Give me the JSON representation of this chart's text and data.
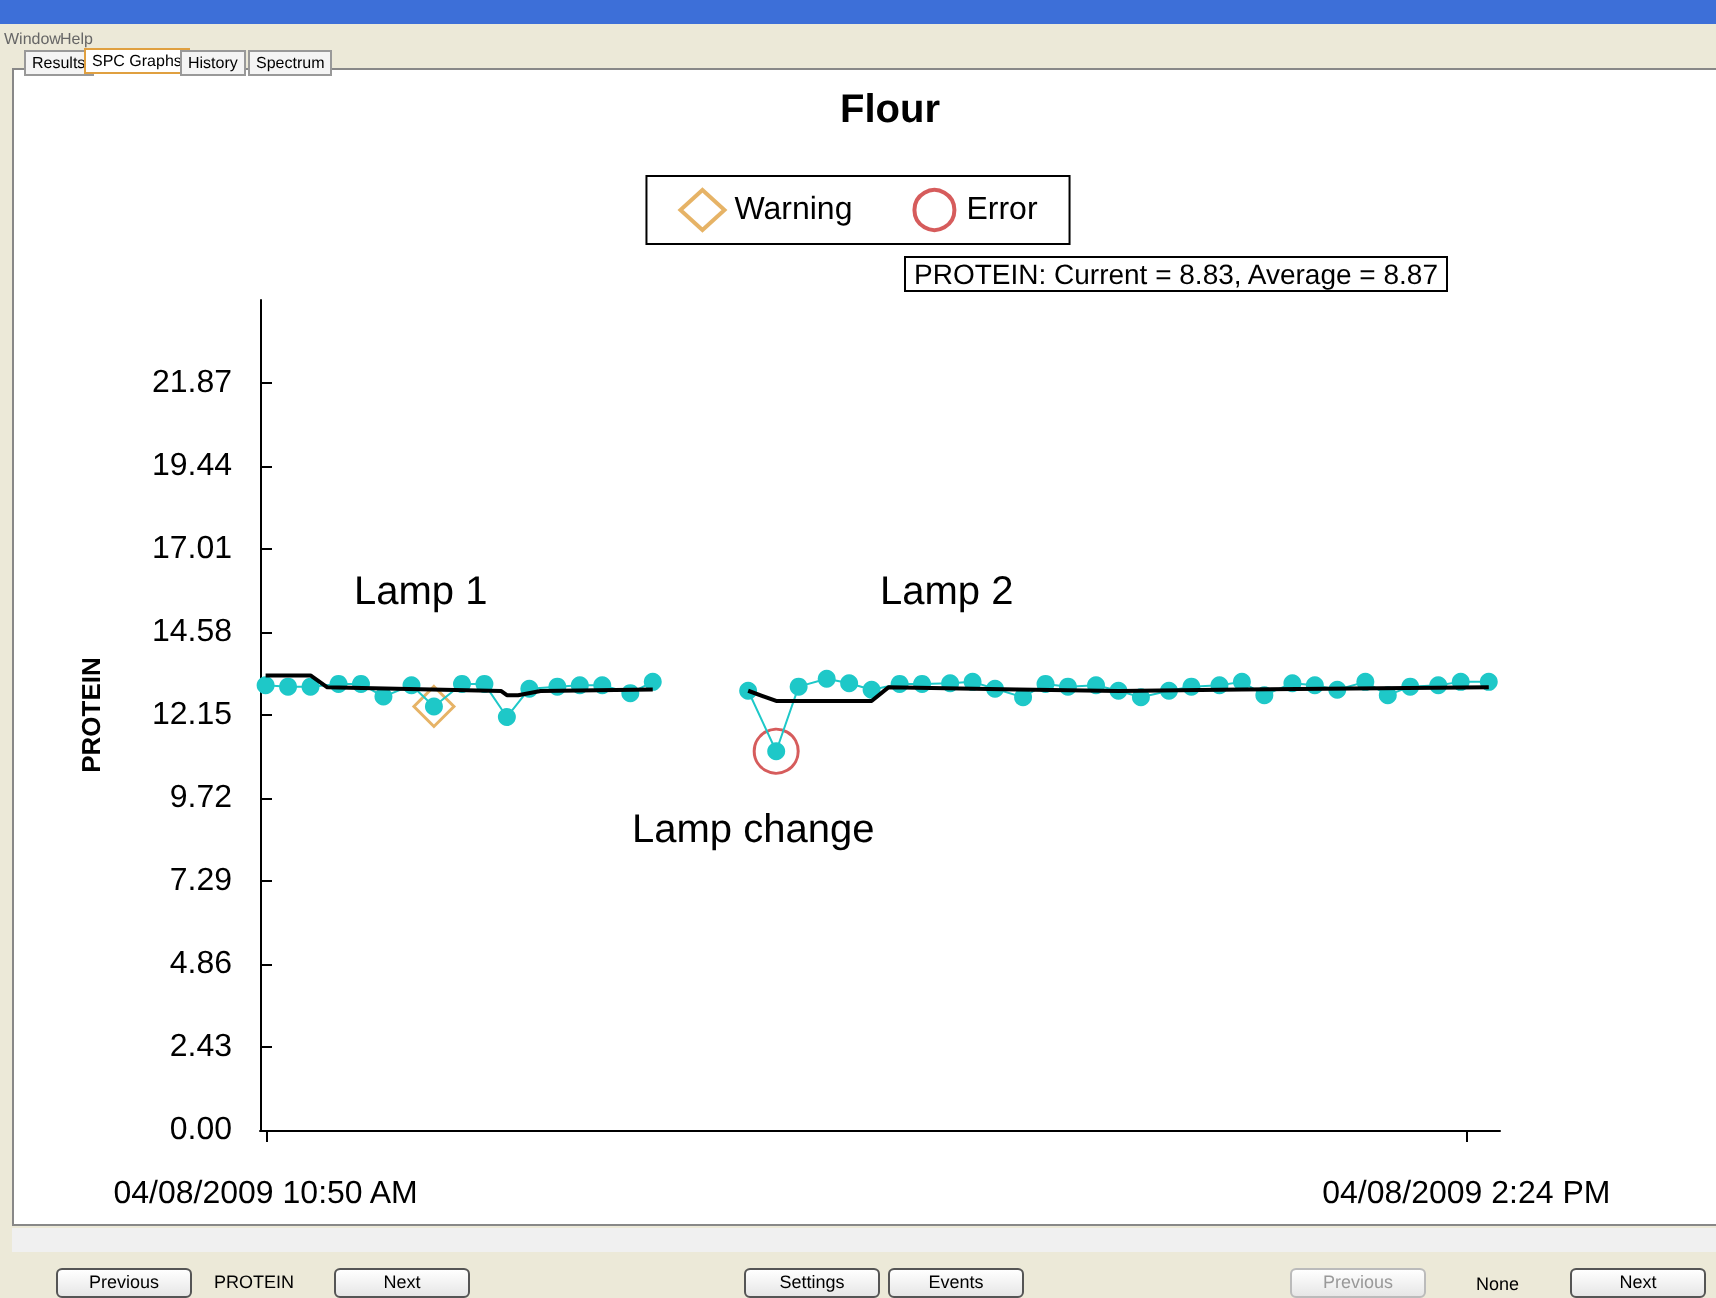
{
  "chart_data": {
    "type": "line",
    "title": "Flour",
    "ylabel": "PROTEIN",
    "xlim": [
      "2009-04-08T10:49",
      "2009-04-08T14:30"
    ],
    "xticks": [
      {
        "value": "2009-04-08T10:50",
        "label": "04/08/2009 10:50 AM"
      },
      {
        "value": "2009-04-08T14:24",
        "label": "04/08/2009 2:24 PM"
      }
    ],
    "ylim": [
      0,
      24.3
    ],
    "yticks": [
      {
        "value": 0,
        "label": "0.00"
      },
      2.43,
      4.86,
      7.29,
      9.72,
      12.15,
      14.58,
      17.01,
      19.44,
      21.87
    ],
    "grid": false,
    "legend": "top",
    "series": [
      {
        "type": "line",
        "marker": "none",
        "color": "#000000",
        "x": [
          "2009-04-08T10:50",
          "2009-04-08T10:58",
          "2009-04-08T11:01",
          "2009-04-08T11:32",
          "2009-04-08T11:33",
          "2009-04-08T11:35",
          "2009-04-08T11:39",
          "2009-04-08T11:59"
        ],
        "values": [
          13.31,
          13.31,
          12.96,
          12.85,
          12.73,
          12.73,
          12.85,
          12.9
        ]
      },
      {
        "type": "line",
        "marker": "none",
        "color": "#000000",
        "x": [
          "2009-04-08T12:16",
          "2009-04-08T12:21",
          "2009-04-08T12:38",
          "2009-04-08T12:41",
          "2009-04-08T13:04",
          "2009-04-08T13:22",
          "2009-04-08T13:44",
          "2009-04-08T14:28"
        ],
        "values": [
          12.86,
          12.56,
          12.56,
          12.96,
          12.9,
          12.85,
          12.9,
          12.96
        ]
      },
      {
        "type": "line",
        "marker": "circle",
        "color": "#1ec8c8",
        "x": [
          "2009-04-08T10:50",
          "2009-04-08T10:54",
          "2009-04-08T10:58",
          "2009-04-08T11:03",
          "2009-04-08T11:07",
          "2009-04-08T11:11",
          "2009-04-08T11:16",
          "2009-04-08T11:20",
          "2009-04-08T11:25",
          "2009-04-08T11:29",
          "2009-04-08T11:33",
          "2009-04-08T11:37",
          "2009-04-08T11:42",
          "2009-04-08T11:46",
          "2009-04-08T11:50",
          "2009-04-08T11:55",
          "2009-04-08T11:59"
        ],
        "values": [
          13.02,
          12.98,
          12.98,
          13.06,
          13.06,
          12.69,
          13.02,
          12.4,
          13.06,
          13.06,
          12.09,
          12.92,
          12.98,
          13.02,
          13.02,
          12.79,
          13.12
        ]
      },
      {
        "type": "line",
        "marker": "circle",
        "color": "#1ec8c8",
        "x": [
          "2009-04-08T12:16",
          "2009-04-08T12:21",
          "2009-04-08T12:25",
          "2009-04-08T12:30",
          "2009-04-08T12:34",
          "2009-04-08T12:38",
          "2009-04-08T12:43",
          "2009-04-08T12:47",
          "2009-04-08T12:52",
          "2009-04-08T12:56",
          "2009-04-08T13:00",
          "2009-04-08T13:05",
          "2009-04-08T13:09",
          "2009-04-08T13:13",
          "2009-04-08T13:18",
          "2009-04-08T13:22",
          "2009-04-08T13:26",
          "2009-04-08T13:31",
          "2009-04-08T13:35",
          "2009-04-08T13:40",
          "2009-04-08T13:44",
          "2009-04-08T13:48",
          "2009-04-08T13:53",
          "2009-04-08T13:57",
          "2009-04-08T14:01",
          "2009-04-08T14:06",
          "2009-04-08T14:10",
          "2009-04-08T14:14",
          "2009-04-08T14:19",
          "2009-04-08T14:23",
          "2009-04-08T14:28"
        ],
        "values": [
          12.86,
          11.09,
          12.98,
          13.21,
          13.08,
          12.89,
          13.06,
          13.06,
          13.08,
          13.12,
          12.92,
          12.67,
          13.06,
          12.98,
          13.02,
          12.86,
          12.67,
          12.86,
          12.98,
          13.02,
          13.12,
          12.73,
          13.08,
          13.02,
          12.89,
          13.12,
          12.73,
          12.98,
          13.02,
          13.12,
          13.12
        ]
      },
      {
        "type": "scatter",
        "name": "Warning",
        "marker": "diamond",
        "color": "#e0a040",
        "x": [
          "2009-04-08T11:20"
        ],
        "values": [
          12.4
        ]
      },
      {
        "type": "scatter",
        "name": "Error",
        "marker": "circle",
        "color": "#cc3333",
        "x": [
          "2009-04-08T12:21"
        ],
        "values": [
          11.09
        ]
      }
    ],
    "annotations": [
      "Lamp 1",
      "Lamp 2",
      "Lamp change",
      "PROTEIN: Current = 8.83, Average = 8.87",
      "Window",
      "Help",
      "Results",
      "SPC Graphs",
      "History",
      "Spectrum",
      "Previous",
      "PROTEIN",
      "Next",
      "Settings",
      "Events",
      "Previous",
      "None",
      "Next"
    ]
  }
}
